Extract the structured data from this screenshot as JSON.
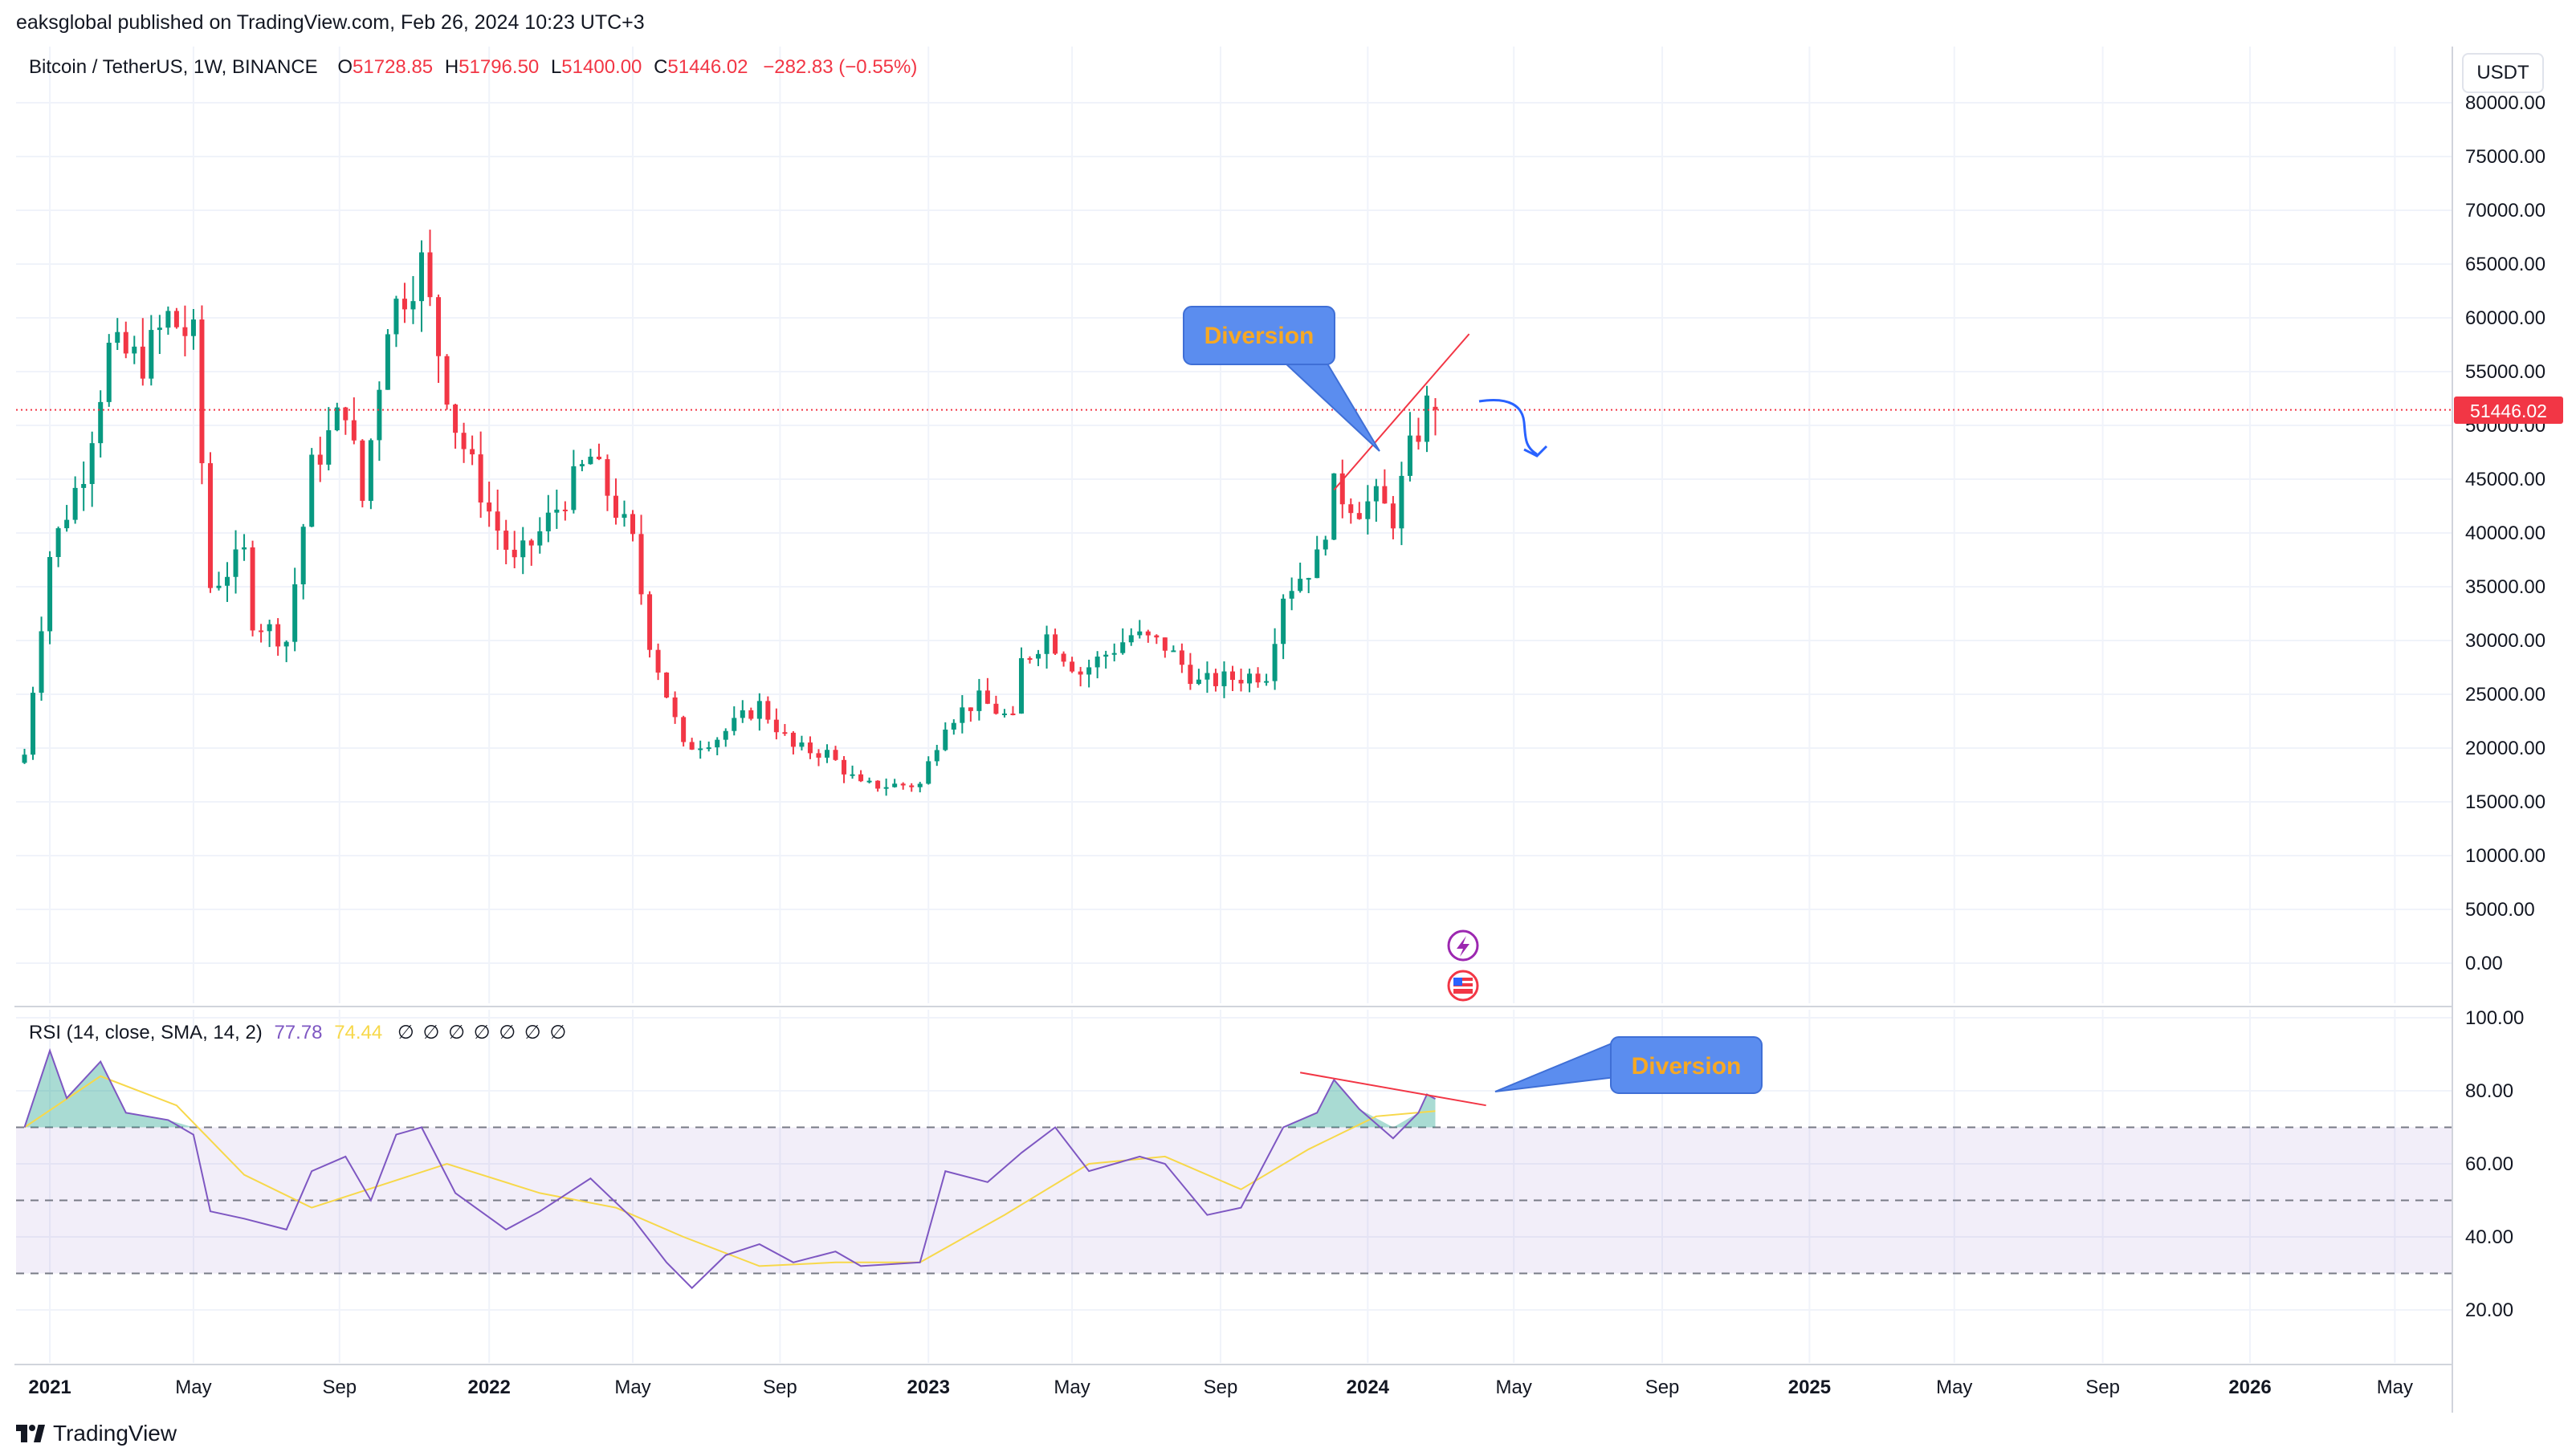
{
  "header": {
    "published": "eaksglobal published on TradingView.com, Feb 26, 2024 10:23 UTC+3"
  },
  "legend": {
    "symbol": "Bitcoin / TetherUS, 1W, BINANCE",
    "o_label": "O",
    "o": "51728.85",
    "h_label": "H",
    "h": "51796.50",
    "l_label": "L",
    "l": "51400.00",
    "c_label": "C",
    "c": "51446.02",
    "change": "−282.83 (−0.55%)"
  },
  "currency_button": "USDT",
  "last_price_tag": "51446.02",
  "rsi_legend": {
    "label": "RSI (14, close, SMA, 14, 2)",
    "rsi_value": "77.78",
    "sma_value": "74.44",
    "hidden_values": "∅ ∅ ∅ ∅ ∅ ∅ ∅"
  },
  "footer": {
    "brand": "TradingView"
  },
  "colors": {
    "up": "#089981",
    "down": "#f23645",
    "rsi_line": "#7e57c2",
    "rsi_sma": "#f7d84a",
    "callout_fill": "#5b8def",
    "callout_text": "#f7a823",
    "trendline": "#f23645",
    "arrow": "#2962ff"
  },
  "icons": [
    "lightning-event-icon",
    "us-flag-event-icon",
    "tradingview-logo-icon"
  ],
  "chart_data": [
    {
      "type": "candlestick",
      "title": "Bitcoin / TetherUS, 1W, BINANCE",
      "y_axis_labels": [
        "80000.00",
        "75000.00",
        "70000.00",
        "65000.00",
        "60000.00",
        "55000.00",
        "50000.00",
        "45000.00",
        "40000.00",
        "35000.00",
        "30000.00",
        "25000.00",
        "20000.00",
        "15000.00",
        "10000.00",
        "5000.00",
        "0.00"
      ],
      "ylim": [
        0,
        81000
      ],
      "x_axis_labels": [
        "2021",
        "May",
        "Sep",
        "2022",
        "May",
        "Sep",
        "2023",
        "May",
        "Sep",
        "2024",
        "May",
        "Sep",
        "2025",
        "May",
        "Sep",
        "2026",
        "May"
      ],
      "x_axis_bold": [
        "2021",
        "2022",
        "2023",
        "2024",
        "2025",
        "2026"
      ],
      "xlim": [
        "2020-12-07",
        "2026-06-15"
      ],
      "last_price": 51446.02,
      "series": [
        {
          "date": "2020-12-14",
          "close": 19400
        },
        {
          "date": "2021-01-04",
          "close": 38000
        },
        {
          "date": "2021-02-01",
          "close": 46000
        },
        {
          "date": "2021-02-22",
          "close": 57000
        },
        {
          "date": "2021-03-22",
          "close": 56000
        },
        {
          "date": "2021-04-12",
          "close": 60000
        },
        {
          "date": "2021-05-03",
          "close": 58000
        },
        {
          "date": "2021-05-17",
          "close": 35000
        },
        {
          "date": "2021-06-14",
          "close": 38000
        },
        {
          "date": "2021-06-21",
          "close": 32000
        },
        {
          "date": "2021-07-19",
          "close": 30000
        },
        {
          "date": "2021-08-09",
          "close": 46000
        },
        {
          "date": "2021-09-06",
          "close": 52000
        },
        {
          "date": "2021-09-20",
          "close": 43000
        },
        {
          "date": "2021-10-11",
          "close": 60000
        },
        {
          "date": "2021-11-08",
          "close": 65000
        },
        {
          "date": "2021-11-22",
          "close": 57000
        },
        {
          "date": "2021-12-06",
          "close": 50000
        },
        {
          "date": "2022-01-03",
          "close": 42000
        },
        {
          "date": "2022-01-24",
          "close": 37000
        },
        {
          "date": "2022-02-14",
          "close": 40000
        },
        {
          "date": "2022-03-28",
          "close": 47000
        },
        {
          "date": "2022-05-02",
          "close": 39000
        },
        {
          "date": "2022-05-16",
          "close": 30000
        },
        {
          "date": "2022-06-13",
          "close": 20000
        },
        {
          "date": "2022-07-11",
          "close": 21000
        },
        {
          "date": "2022-08-15",
          "close": 24000
        },
        {
          "date": "2022-09-12",
          "close": 20000
        },
        {
          "date": "2022-10-10",
          "close": 19500
        },
        {
          "date": "2022-11-07",
          "close": 16500
        },
        {
          "date": "2022-12-26",
          "close": 16600
        },
        {
          "date": "2023-01-16",
          "close": 22500
        },
        {
          "date": "2023-02-13",
          "close": 24500
        },
        {
          "date": "2023-03-13",
          "close": 22500
        },
        {
          "date": "2023-03-20",
          "close": 28000
        },
        {
          "date": "2023-04-10",
          "close": 30500
        },
        {
          "date": "2023-05-08",
          "close": 27000
        },
        {
          "date": "2023-06-19",
          "close": 30500
        },
        {
          "date": "2023-07-17",
          "close": 29500
        },
        {
          "date": "2023-08-14",
          "close": 26000
        },
        {
          "date": "2023-09-11",
          "close": 26500
        },
        {
          "date": "2023-10-09",
          "close": 27000
        },
        {
          "date": "2023-10-23",
          "close": 34500
        },
        {
          "date": "2023-11-20",
          "close": 37500
        },
        {
          "date": "2023-12-04",
          "close": 44000
        },
        {
          "date": "2023-12-25",
          "close": 42500
        },
        {
          "date": "2024-01-08",
          "close": 43000
        },
        {
          "date": "2024-01-22",
          "close": 41500
        },
        {
          "date": "2024-02-05",
          "close": 47500
        },
        {
          "date": "2024-02-19",
          "close": 51700
        },
        {
          "date": "2024-02-26",
          "close": 51446
        }
      ],
      "annotations": [
        {
          "type": "callout",
          "text": "Diversion"
        },
        {
          "type": "trendline",
          "from": {
            "date": "2023-12-04",
            "price": 44000
          },
          "to": {
            "date": "2024-03-25",
            "price": 58500
          }
        }
      ]
    },
    {
      "type": "line",
      "title": "RSI (14, close, SMA, 14, 2)",
      "y_axis_labels": [
        "100.00",
        "80.00",
        "60.00",
        "40.00",
        "20.00"
      ],
      "ylim": [
        10,
        104
      ],
      "bands": {
        "upper": 70,
        "middle": 50,
        "lower": 30
      },
      "series": [
        {
          "name": "RSI",
          "values": [
            {
              "date": "2020-12-14",
              "v": 70
            },
            {
              "date": "2021-01-04",
              "v": 91
            },
            {
              "date": "2021-01-18",
              "v": 78
            },
            {
              "date": "2021-02-15",
              "v": 88
            },
            {
              "date": "2021-03-08",
              "v": 74
            },
            {
              "date": "2021-04-12",
              "v": 72
            },
            {
              "date": "2021-05-03",
              "v": 68
            },
            {
              "date": "2021-05-17",
              "v": 47
            },
            {
              "date": "2021-06-14",
              "v": 45
            },
            {
              "date": "2021-07-19",
              "v": 42
            },
            {
              "date": "2021-08-09",
              "v": 58
            },
            {
              "date": "2021-09-06",
              "v": 62
            },
            {
              "date": "2021-09-27",
              "v": 50
            },
            {
              "date": "2021-10-18",
              "v": 68
            },
            {
              "date": "2021-11-08",
              "v": 70
            },
            {
              "date": "2021-12-06",
              "v": 52
            },
            {
              "date": "2022-01-17",
              "v": 42
            },
            {
              "date": "2022-02-14",
              "v": 47
            },
            {
              "date": "2022-03-28",
              "v": 56
            },
            {
              "date": "2022-05-02",
              "v": 45
            },
            {
              "date": "2022-05-30",
              "v": 33
            },
            {
              "date": "2022-06-20",
              "v": 26
            },
            {
              "date": "2022-07-18",
              "v": 35
            },
            {
              "date": "2022-08-15",
              "v": 38
            },
            {
              "date": "2022-09-12",
              "v": 33
            },
            {
              "date": "2022-10-17",
              "v": 36
            },
            {
              "date": "2022-11-07",
              "v": 32
            },
            {
              "date": "2022-12-26",
              "v": 33
            },
            {
              "date": "2023-01-16",
              "v": 58
            },
            {
              "date": "2023-02-20",
              "v": 55
            },
            {
              "date": "2023-03-20",
              "v": 63
            },
            {
              "date": "2023-04-17",
              "v": 70
            },
            {
              "date": "2023-05-15",
              "v": 58
            },
            {
              "date": "2023-06-26",
              "v": 62
            },
            {
              "date": "2023-07-17",
              "v": 60
            },
            {
              "date": "2023-08-21",
              "v": 46
            },
            {
              "date": "2023-09-18",
              "v": 48
            },
            {
              "date": "2023-10-23",
              "v": 70
            },
            {
              "date": "2023-11-20",
              "v": 74
            },
            {
              "date": "2023-12-04",
              "v": 83
            },
            {
              "date": "2023-12-25",
              "v": 75
            },
            {
              "date": "2024-01-22",
              "v": 67
            },
            {
              "date": "2024-02-12",
              "v": 74
            },
            {
              "date": "2024-02-19",
              "v": 79
            },
            {
              "date": "2024-02-26",
              "v": 77.78
            }
          ]
        },
        {
          "name": "SMA",
          "values": [
            {
              "date": "2020-12-14",
              "v": 70
            },
            {
              "date": "2021-02-15",
              "v": 84
            },
            {
              "date": "2021-04-19",
              "v": 76
            },
            {
              "date": "2021-06-14",
              "v": 57
            },
            {
              "date": "2021-08-09",
              "v": 48
            },
            {
              "date": "2021-10-04",
              "v": 54
            },
            {
              "date": "2021-11-29",
              "v": 60
            },
            {
              "date": "2022-02-14",
              "v": 52
            },
            {
              "date": "2022-04-18",
              "v": 48
            },
            {
              "date": "2022-06-13",
              "v": 40
            },
            {
              "date": "2022-08-15",
              "v": 32
            },
            {
              "date": "2022-10-17",
              "v": 33
            },
            {
              "date": "2022-12-26",
              "v": 33
            },
            {
              "date": "2023-03-06",
              "v": 46
            },
            {
              "date": "2023-05-15",
              "v": 60
            },
            {
              "date": "2023-07-17",
              "v": 62
            },
            {
              "date": "2023-09-18",
              "v": 53
            },
            {
              "date": "2023-11-13",
              "v": 64
            },
            {
              "date": "2024-01-08",
              "v": 73
            },
            {
              "date": "2024-02-26",
              "v": 74.44
            }
          ]
        }
      ],
      "annotations": [
        {
          "type": "callout",
          "text": "Diversion"
        },
        {
          "type": "trendline",
          "from": {
            "date": "2023-11-06",
            "v": 85
          },
          "to": {
            "date": "2024-04-08",
            "v": 76
          }
        }
      ]
    }
  ]
}
